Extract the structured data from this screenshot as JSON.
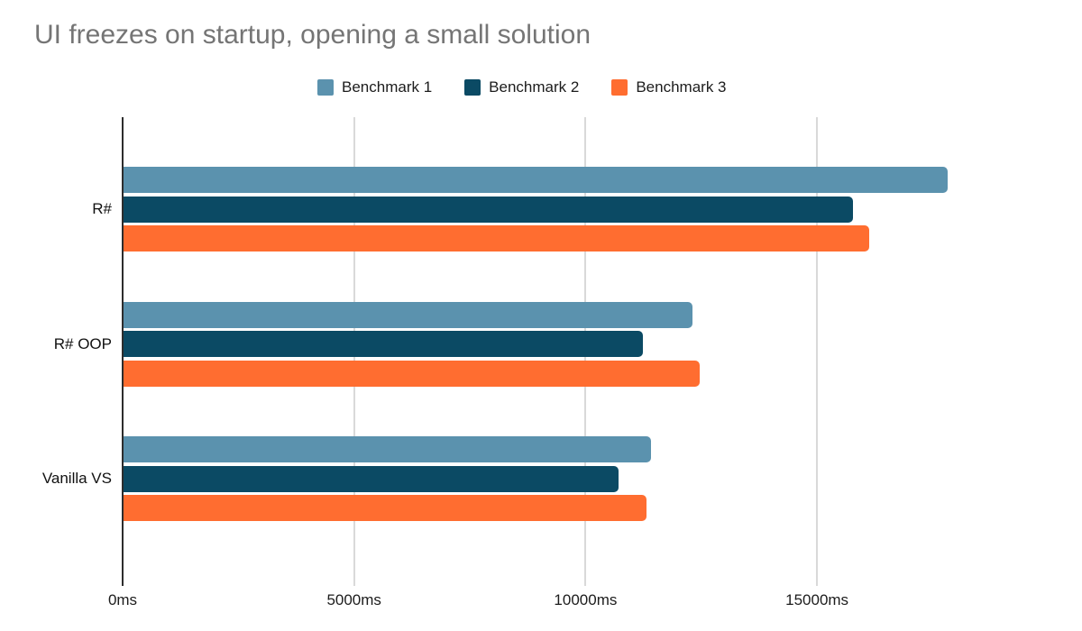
{
  "title": "UI freezes on startup, opening a small solution",
  "title_color": "#757575",
  "chart_data": {
    "type": "bar",
    "orientation": "horizontal",
    "title": "UI freezes on startup, opening a small solution",
    "categories": [
      "R#",
      "R# OOP",
      "Vanilla VS"
    ],
    "series": [
      {
        "name": "Benchmark 1",
        "color": "#5b92ae",
        "values": [
          17800,
          12300,
          11400
        ]
      },
      {
        "name": "Benchmark 2",
        "color": "#0b4a64",
        "values": [
          15750,
          11220,
          10700
        ]
      },
      {
        "name": "Benchmark 3",
        "color": "#ff6d30",
        "values": [
          16100,
          12450,
          11300
        ]
      }
    ],
    "x_tick_values": [
      0,
      5000,
      10000,
      15000
    ],
    "x_tick_labels": [
      "0ms",
      "5000ms",
      "10000ms",
      "15000ms"
    ],
    "unit": "ms",
    "xlim": [
      0,
      20700
    ],
    "grid": "vertical-only",
    "gridline_color": "#d9d9d9",
    "axis_line_color": "#2d2d2d",
    "legend_position": "top"
  }
}
